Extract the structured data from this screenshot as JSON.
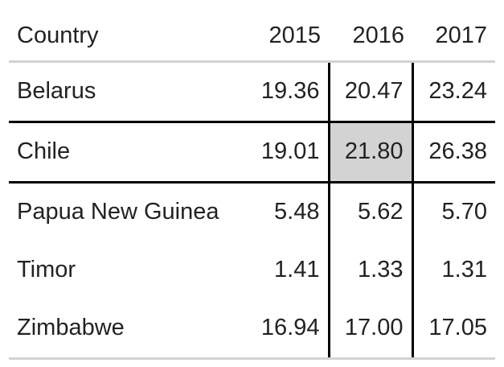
{
  "chart_data": {
    "type": "table",
    "columns": [
      "Country",
      "2015",
      "2016",
      "2017"
    ],
    "rows": [
      {
        "country": "Belarus",
        "values": [
          "19.36",
          "20.47",
          "23.24"
        ]
      },
      {
        "country": "Chile",
        "values": [
          "19.01",
          "21.80",
          "26.38"
        ]
      },
      {
        "country": "Papua New Guinea",
        "values": [
          "5.48",
          "5.62",
          "5.70"
        ]
      },
      {
        "country": "Timor",
        "values": [
          "1.41",
          "1.33",
          "1.31"
        ]
      },
      {
        "country": "Zimbabwe",
        "values": [
          "16.94",
          "17.00",
          "17.05"
        ]
      }
    ],
    "highlighted_row": "Chile",
    "highlighted_cell": {
      "row": "Chile",
      "column": "2016"
    },
    "highlight_color": "#d3d3d3",
    "rule_color": "#d3d3d3",
    "emphasis_line_color": "#000000"
  }
}
